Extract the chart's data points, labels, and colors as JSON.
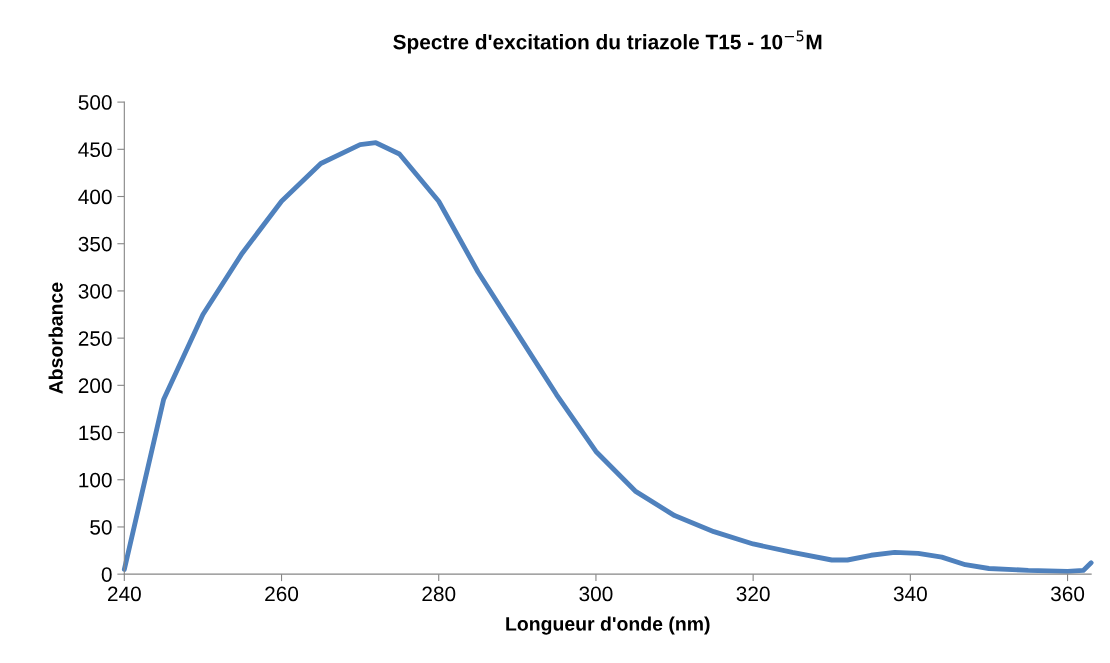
{
  "chart_data": {
    "type": "line",
    "title": "Spectre d'excitation du triazole T15 - 10$^{−5}$M",
    "xlabel": "Longueur d'onde (nm)",
    "ylabel": "Absorbance",
    "x": [
      240,
      245,
      250,
      255,
      260,
      265,
      270,
      272,
      275,
      280,
      285,
      290,
      295,
      300,
      305,
      310,
      315,
      320,
      325,
      330,
      332,
      335,
      338,
      341,
      344,
      347,
      350,
      355,
      360,
      362,
      363
    ],
    "series": [
      {
        "color": "#4f81bd",
        "values": [
          5,
          185,
          275,
          340,
          395,
          435,
          455,
          457,
          445,
          395,
          320,
          255,
          190,
          130,
          88,
          62,
          45,
          32,
          23,
          15,
          15,
          20,
          23,
          22,
          18,
          10,
          6,
          4,
          3,
          4,
          12
        ]
      }
    ],
    "xlim": [
      240,
      363
    ],
    "xticks": [
      240,
      260,
      280,
      300,
      320,
      340,
      360
    ],
    "ylim": [
      0,
      500
    ],
    "yticks": [
      0,
      50,
      100,
      150,
      200,
      250,
      300,
      350,
      400,
      450,
      500
    ],
    "grid": false,
    "marker": "none",
    "line_style": "solid"
  }
}
